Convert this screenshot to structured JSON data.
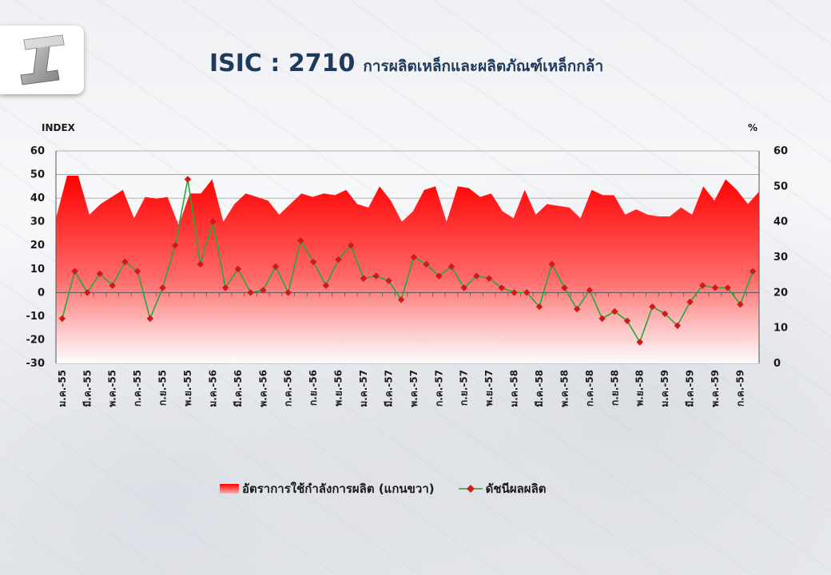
{
  "header": {
    "code": "ISIC : 2710",
    "subtitle": "การผลิตเหล็กและผลิตภัณฑ์เหล็กกล้า"
  },
  "colors": {
    "area_top": "#ff0000",
    "area_bottom": "#ffffff",
    "line": "#22a83a",
    "marker": "#d01a1a",
    "title": "#1f3a5a"
  },
  "chart_data": {
    "type": "line",
    "left_axis": {
      "label": "INDEX",
      "min": -30,
      "max": 60,
      "ticks": [
        60,
        50,
        40,
        30,
        20,
        10,
        0,
        -10,
        -20,
        -30
      ]
    },
    "right_axis": {
      "label": "%",
      "min": 0,
      "max": 60,
      "ticks": [
        60,
        50,
        40,
        30,
        20,
        10,
        0
      ]
    },
    "x_labels": [
      "ม.ค.-55",
      "มี.ค.-55",
      "พ.ค.-55",
      "ก.ค.-55",
      "ก.ย.-55",
      "พ.ย.-55",
      "ม.ค.-56",
      "มี.ค.-56",
      "พ.ค.-56",
      "ก.ค.-56",
      "ก.ย.-56",
      "พ.ย.-56",
      "ม.ค.-57",
      "มี.ค.-57",
      "พ.ค.-57",
      "ก.ค.-57",
      "ก.ย.-57",
      "พ.ย.-57",
      "ม.ค.-58",
      "มี.ค.-58",
      "พ.ค.-58",
      "ก.ค.-58",
      "ก.ย.-58",
      "พ.ย.-58",
      "ม.ค.-59",
      "มี.ค.-59",
      "พ.ค.-59",
      "ก.ค.-59"
    ],
    "x_label_every": 2,
    "series": [
      {
        "name": "อัตราการใช้กำลังการผลิต (แกนขวา)",
        "kind": "area",
        "axis": "right",
        "values": [
          41,
          53,
          53,
          42,
          45,
          47,
          49,
          41,
          47,
          46.5,
          47,
          39,
          48,
          48,
          52,
          40,
          45,
          48,
          47,
          46,
          42,
          45,
          48,
          47,
          48,
          47.5,
          49,
          45,
          44,
          50,
          46,
          40,
          43,
          49,
          50,
          40,
          50,
          49.5,
          47,
          48,
          43,
          41,
          49,
          42,
          45,
          44.5,
          44,
          41,
          49,
          47.5,
          47.5,
          42,
          43.5,
          42,
          41.5,
          41.5,
          44,
          42,
          50,
          46,
          52,
          49,
          45,
          48.5
        ]
      },
      {
        "name": "ดัชนีผลผลิต",
        "kind": "line",
        "axis": "left",
        "values": [
          -11,
          9,
          0,
          8,
          3,
          13,
          9,
          -11,
          2,
          20,
          48,
          12,
          30,
          2,
          10,
          0,
          1,
          11,
          0,
          22,
          13,
          3,
          14,
          20,
          6,
          7,
          5,
          -3,
          15,
          12,
          7,
          11,
          2,
          7,
          6,
          2,
          0,
          0,
          -6,
          12,
          2,
          -7,
          1,
          -11,
          -8,
          -12,
          -21,
          -6,
          -9,
          -14,
          -4,
          3,
          2,
          2,
          -5,
          9
        ]
      }
    ]
  },
  "legend": {
    "area_label": "อัตราการใช้กำลังการผลิต (แกนขวา)",
    "line_label": "ดัชนีผลผลิต"
  }
}
